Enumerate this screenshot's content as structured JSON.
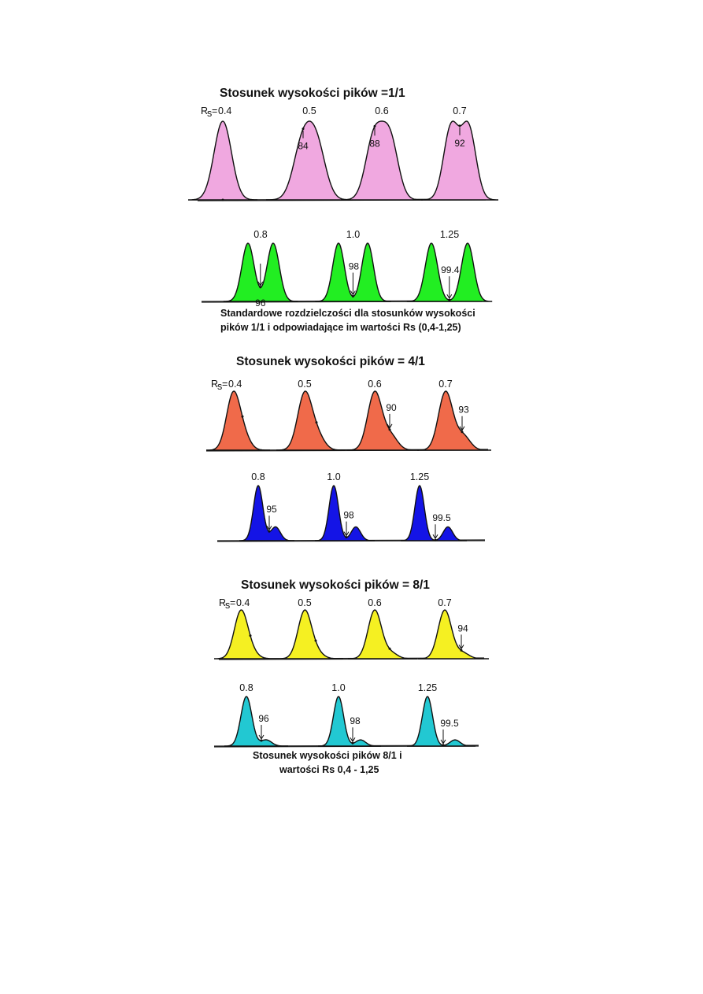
{
  "figure": {
    "blocks": [
      {
        "title": "Stosunek wysokości pików =1/1",
        "ratio": 1,
        "color_top": "#F0A8E0",
        "color_bottom": "#22EE22",
        "rs_symbol": "R",
        "rs_subscript": "s",
        "rs_eq": "=",
        "top": [
          {
            "rs": "0.4",
            "valley": ""
          },
          {
            "rs": "0.5",
            "valley": "84"
          },
          {
            "rs": "0.6",
            "valley": "88"
          },
          {
            "rs": "0.7",
            "valley": "92"
          }
        ],
        "bottom": [
          {
            "rs": "0.8",
            "valley": "96"
          },
          {
            "rs": "1.0",
            "valley": "98"
          },
          {
            "rs": "1.25",
            "valley": "99.4"
          }
        ],
        "caption_lines": [
          "Standardowe rozdzielczości dla stosunków wysokości",
          "pików 1/1 i odpowiadające im wartości Rs (0,4-1,25)"
        ]
      },
      {
        "title": "Stosunek wysokości pików = 4/1",
        "ratio": 4,
        "color_top": "#F06A4A",
        "color_bottom": "#1414E6",
        "rs_symbol": "R",
        "rs_subscript": "s",
        "rs_eq": "=",
        "top": [
          {
            "rs": "0.4",
            "valley": ""
          },
          {
            "rs": "0.5",
            "valley": ""
          },
          {
            "rs": "0.6",
            "valley": "90"
          },
          {
            "rs": "0.7",
            "valley": "93"
          }
        ],
        "bottom": [
          {
            "rs": "0.8",
            "valley": "95"
          },
          {
            "rs": "1.0",
            "valley": "98"
          },
          {
            "rs": "1.25",
            "valley": "99.5"
          }
        ],
        "caption_lines": []
      },
      {
        "title": "Stosunek wysokości pików = 8/1",
        "ratio": 8,
        "color_top": "#F5F022",
        "color_bottom": "#22C8D2",
        "rs_symbol": "R",
        "rs_subscript": "s",
        "rs_eq": "=",
        "top": [
          {
            "rs": "0.4",
            "valley": ""
          },
          {
            "rs": "0.5",
            "valley": ""
          },
          {
            "rs": "0.6",
            "valley": ""
          },
          {
            "rs": "0.7",
            "valley": "94"
          }
        ],
        "bottom": [
          {
            "rs": "0.8",
            "valley": "96"
          },
          {
            "rs": "1.0",
            "valley": "98"
          },
          {
            "rs": "1.25",
            "valley": "99.5"
          }
        ],
        "caption_lines": [
          "Stosunek wysokości pików 8/1  i",
          "wartości  Rs 0,4 - 1,25"
        ]
      }
    ]
  }
}
